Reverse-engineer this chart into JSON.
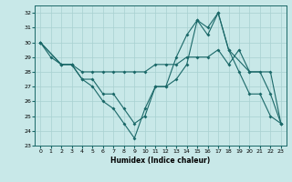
{
  "xlabel": "Humidex (Indice chaleur)",
  "bg_color": "#c8e8e8",
  "grid_color": "#a8d0d0",
  "line_color": "#1a6868",
  "xlim": [
    -0.5,
    23.5
  ],
  "ylim": [
    23,
    32.5
  ],
  "yticks": [
    23,
    24,
    25,
    26,
    27,
    28,
    29,
    30,
    31,
    32
  ],
  "xticks": [
    0,
    1,
    2,
    3,
    4,
    5,
    6,
    7,
    8,
    9,
    10,
    11,
    12,
    13,
    14,
    15,
    16,
    17,
    18,
    19,
    20,
    21,
    22,
    23
  ],
  "line1_x": [
    0,
    1,
    2,
    3,
    4,
    5,
    6,
    7,
    8,
    9,
    10,
    11,
    12,
    13,
    14,
    15,
    16,
    17,
    18,
    19,
    20,
    21,
    22,
    23
  ],
  "line1_y": [
    30.0,
    29.0,
    28.5,
    28.5,
    27.5,
    27.0,
    26.0,
    25.5,
    24.5,
    23.5,
    25.5,
    27.0,
    27.0,
    27.5,
    28.5,
    31.5,
    31.0,
    32.0,
    29.5,
    28.0,
    26.5,
    26.5,
    25.0,
    24.5
  ],
  "line2_x": [
    0,
    2,
    3,
    4,
    5,
    6,
    7,
    8,
    9,
    10,
    11,
    12,
    13,
    14,
    15,
    16,
    17,
    18,
    19,
    20,
    21,
    22,
    23
  ],
  "line2_y": [
    30.0,
    28.5,
    28.5,
    28.0,
    28.0,
    28.0,
    28.0,
    28.0,
    28.0,
    28.0,
    28.5,
    28.5,
    28.5,
    29.0,
    29.0,
    29.0,
    29.5,
    28.5,
    29.5,
    28.0,
    28.0,
    26.5,
    24.5
  ],
  "line3_x": [
    0,
    2,
    3,
    4,
    5,
    6,
    7,
    8,
    9,
    10,
    11,
    12,
    13,
    14,
    15,
    16,
    17,
    18,
    20,
    22,
    23
  ],
  "line3_y": [
    30.0,
    28.5,
    28.5,
    27.5,
    27.5,
    26.5,
    26.5,
    25.5,
    24.5,
    25.0,
    27.0,
    27.0,
    29.0,
    30.5,
    31.5,
    30.5,
    32.0,
    29.5,
    28.0,
    28.0,
    24.5
  ],
  "markersize": 2.0,
  "linewidth": 0.8
}
